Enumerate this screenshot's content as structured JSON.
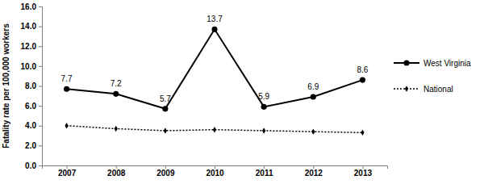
{
  "chart_data": {
    "type": "line",
    "y_label": "Fatality rate per 100,000 workers",
    "categories": [
      "2007",
      "2008",
      "2009",
      "2010",
      "2011",
      "2012",
      "2013"
    ],
    "series": [
      {
        "name": "West Virginia",
        "color": "#000000",
        "marker": "circle",
        "line_style": "solid",
        "data_labels": true,
        "values": [
          7.7,
          7.2,
          5.7,
          13.7,
          5.9,
          6.9,
          8.6
        ]
      },
      {
        "name": "National",
        "color": "#000000",
        "marker": "diamond",
        "line_style": "dotted",
        "data_labels": false,
        "values": [
          4.0,
          3.7,
          3.5,
          3.6,
          3.5,
          3.4,
          3.3
        ]
      }
    ],
    "ylim": [
      0,
      16
    ],
    "yticks": [
      {
        "value": 0,
        "label": "0.0"
      },
      {
        "value": 2,
        "label": "2.0"
      },
      {
        "value": 4,
        "label": "4.0"
      },
      {
        "value": 6,
        "label": "6.0"
      },
      {
        "value": 8,
        "label": "8.0"
      },
      {
        "value": 10,
        "label": "10.0"
      },
      {
        "value": 12,
        "label": "12.0"
      },
      {
        "value": 14,
        "label": "14.0"
      },
      {
        "value": 16,
        "label": "16.0"
      }
    ],
    "grid": false,
    "legend": "right"
  }
}
